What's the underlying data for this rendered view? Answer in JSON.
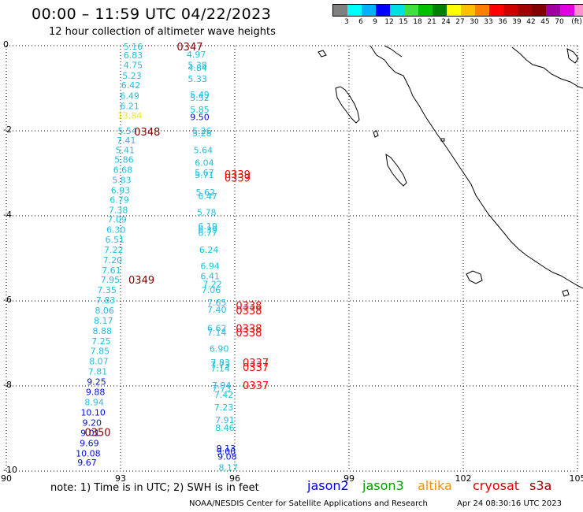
{
  "title": "00:00 – 11:59 UTC 04/22/2023",
  "subtitle": "12 hour collection of altimeter wave heights",
  "legend": {
    "colors": [
      "#808080",
      "#00ffff",
      "#00b0ff",
      "#0000ff",
      "#00e0e0",
      "#40e040",
      "#00c000",
      "#008000",
      "#ffff00",
      "#ffc000",
      "#ff8000",
      "#ff0000",
      "#d00000",
      "#a00000",
      "#800000",
      "#a000a0",
      "#e000e0",
      "#ff90d0",
      "#000000"
    ],
    "labels": [
      "3",
      "6",
      "9",
      "12",
      "15",
      "18",
      "21",
      "24",
      "27",
      "30",
      "33",
      "36",
      "39",
      "42",
      "45",
      "70",
      "(ft)"
    ]
  },
  "map": {
    "lon_ticks": [
      "90",
      "93",
      "96",
      "99",
      "102",
      "105"
    ],
    "lat_ticks": [
      "0",
      "-2",
      "-4",
      "-6",
      "-8",
      "-10"
    ],
    "lon_range": [
      90,
      105
    ],
    "lat_range": [
      0,
      -10
    ]
  },
  "track1": [
    {
      "lat": -0.02,
      "lon": 93.33,
      "v": "5.16",
      "c": "#20c0e0"
    },
    {
      "lat": -0.22,
      "lon": 93.33,
      "v": "6.83",
      "c": "#20c0e0"
    },
    {
      "lat": -0.45,
      "lon": 93.33,
      "v": "4.75",
      "c": "#20c0e0"
    },
    {
      "lat": -0.7,
      "lon": 93.3,
      "v": "5.23",
      "c": "#20c0e0"
    },
    {
      "lat": -0.93,
      "lon": 93.27,
      "v": "6.42",
      "c": "#20c0e0"
    },
    {
      "lat": -1.18,
      "lon": 93.24,
      "v": "6.49",
      "c": "#20c0e0"
    },
    {
      "lat": -1.42,
      "lon": 93.24,
      "v": "6.21",
      "c": "#20c0e0"
    },
    {
      "lat": -1.64,
      "lon": 93.24,
      "v": "13.84",
      "c": "#e8e820"
    },
    {
      "lat": -2.0,
      "lon": 93.18,
      "v": "5.54",
      "c": "#20c0e0"
    },
    {
      "lat": -2.22,
      "lon": 93.15,
      "v": "7.41",
      "c": "#20c0e0"
    },
    {
      "lat": -2.45,
      "lon": 93.12,
      "v": "5.41",
      "c": "#20c0e0"
    },
    {
      "lat": -2.68,
      "lon": 93.09,
      "v": "5.86",
      "c": "#20c0e0"
    },
    {
      "lat": -2.92,
      "lon": 93.06,
      "v": "6.68",
      "c": "#20c0e0"
    },
    {
      "lat": -3.16,
      "lon": 93.03,
      "v": "5.83",
      "c": "#20c0e0"
    },
    {
      "lat": -3.4,
      "lon": 93.0,
      "v": "6.93",
      "c": "#20c0e0"
    },
    {
      "lat": -3.62,
      "lon": 92.97,
      "v": "6.79",
      "c": "#20c0e0"
    },
    {
      "lat": -3.86,
      "lon": 92.94,
      "v": "7.38",
      "c": "#20c0e0"
    },
    {
      "lat": -4.08,
      "lon": 92.91,
      "v": "7.09",
      "c": "#20c0e0"
    },
    {
      "lat": -4.32,
      "lon": 92.88,
      "v": "6.30",
      "c": "#20c0e0"
    },
    {
      "lat": -4.56,
      "lon": 92.85,
      "v": "6.51",
      "c": "#20c0e0"
    },
    {
      "lat": -4.8,
      "lon": 92.82,
      "v": "7.22",
      "c": "#20c0e0"
    },
    {
      "lat": -5.04,
      "lon": 92.79,
      "v": "7.20",
      "c": "#20c0e0"
    },
    {
      "lat": -5.28,
      "lon": 92.76,
      "v": "7.61",
      "c": "#20c0e0"
    },
    {
      "lat": -5.5,
      "lon": 92.73,
      "v": "7.95",
      "c": "#20c0e0"
    },
    {
      "lat": -5.74,
      "lon": 92.64,
      "v": "7.35",
      "c": "#20c0e0"
    },
    {
      "lat": -5.98,
      "lon": 92.61,
      "v": "7.83",
      "c": "#20c0e0"
    },
    {
      "lat": -6.22,
      "lon": 92.58,
      "v": "8.06",
      "c": "#20c0e0"
    },
    {
      "lat": -6.46,
      "lon": 92.55,
      "v": "8.17",
      "c": "#20c0e0"
    },
    {
      "lat": -6.7,
      "lon": 92.52,
      "v": "8.88",
      "c": "#20c0e0"
    },
    {
      "lat": -6.94,
      "lon": 92.49,
      "v": "7.25",
      "c": "#20c0e0"
    },
    {
      "lat": -7.18,
      "lon": 92.46,
      "v": "7.85",
      "c": "#20c0e0"
    },
    {
      "lat": -7.42,
      "lon": 92.43,
      "v": "8.07",
      "c": "#20c0e0"
    },
    {
      "lat": -7.66,
      "lon": 92.4,
      "v": "7.81",
      "c": "#20c0e0"
    },
    {
      "lat": -7.9,
      "lon": 92.37,
      "v": "9.25",
      "c": "#0010e0"
    },
    {
      "lat": -8.14,
      "lon": 92.34,
      "v": "9.88",
      "c": "#0010e0"
    },
    {
      "lat": -8.38,
      "lon": 92.31,
      "v": "8.94",
      "c": "#20c0e0"
    },
    {
      "lat": -8.62,
      "lon": 92.28,
      "v": "10.10",
      "c": "#0010e0"
    },
    {
      "lat": -8.86,
      "lon": 92.25,
      "v": "9.20",
      "c": "#0010e0"
    },
    {
      "lat": -9.1,
      "lon": 92.2,
      "v": "9.01",
      "c": "#0010e0"
    },
    {
      "lat": -9.34,
      "lon": 92.18,
      "v": "9.69",
      "c": "#0010e0"
    },
    {
      "lat": -9.58,
      "lon": 92.15,
      "v": "10.08",
      "c": "#0010e0"
    },
    {
      "lat": -9.8,
      "lon": 92.12,
      "v": "9.67",
      "c": "#0010e0"
    }
  ],
  "track2": [
    {
      "lat": -0.2,
      "lon": 94.99,
      "v": "4.97",
      "c": "#20c0e0"
    },
    {
      "lat": -0.45,
      "lon": 95.02,
      "v": "5.38",
      "c": "#20c0e0"
    },
    {
      "lat": -0.52,
      "lon": 95.02,
      "v": "4.84",
      "c": "#20c0e0"
    },
    {
      "lat": -0.78,
      "lon": 95.02,
      "v": "5.33",
      "c": "#20c0e0"
    },
    {
      "lat": -1.15,
      "lon": 95.08,
      "v": "5.49",
      "c": "#20c0e0"
    },
    {
      "lat": -1.22,
      "lon": 95.08,
      "v": "5.52",
      "c": "#20c0e0"
    },
    {
      "lat": -1.5,
      "lon": 95.08,
      "v": "5.85",
      "c": "#20c0e0"
    },
    {
      "lat": -1.68,
      "lon": 95.08,
      "v": "9.50",
      "c": "#0010e0"
    },
    {
      "lat": -2.0,
      "lon": 95.14,
      "v": "5.26",
      "c": "#20c0e0"
    },
    {
      "lat": -2.06,
      "lon": 95.14,
      "v": "5.28",
      "c": "#20c0e0"
    },
    {
      "lat": -2.45,
      "lon": 95.17,
      "v": "5.64",
      "c": "#20c0e0"
    },
    {
      "lat": -2.75,
      "lon": 95.2,
      "v": "6.04",
      "c": "#20c0e0"
    },
    {
      "lat": -2.98,
      "lon": 95.2,
      "v": "5.67",
      "c": "#20c0e0"
    },
    {
      "lat": -3.04,
      "lon": 95.2,
      "v": "5.71",
      "c": "#20c0e0"
    },
    {
      "lat": -3.44,
      "lon": 95.23,
      "v": "5.62",
      "c": "#20c0e0"
    },
    {
      "lat": -3.54,
      "lon": 95.29,
      "v": "6.47",
      "c": "#20c0e0"
    },
    {
      "lat": -3.92,
      "lon": 95.26,
      "v": "5.78",
      "c": "#20c0e0"
    },
    {
      "lat": -4.24,
      "lon": 95.29,
      "v": "6.19",
      "c": "#20c0e0"
    },
    {
      "lat": -4.32,
      "lon": 95.29,
      "v": "6.39",
      "c": "#20c0e0"
    },
    {
      "lat": -4.4,
      "lon": 95.29,
      "v": "6.77",
      "c": "#20c0e0"
    },
    {
      "lat": -4.8,
      "lon": 95.32,
      "v": "6.24",
      "c": "#20c0e0"
    },
    {
      "lat": -5.18,
      "lon": 95.35,
      "v": "6.94",
      "c": "#20c0e0"
    },
    {
      "lat": -5.42,
      "lon": 95.35,
      "v": "6.41",
      "c": "#20c0e0"
    },
    {
      "lat": -5.6,
      "lon": 95.41,
      "v": "7.22",
      "c": "#20c0e0"
    },
    {
      "lat": -5.74,
      "lon": 95.38,
      "v": "7.06",
      "c": "#20c0e0"
    },
    {
      "lat": -6.04,
      "lon": 95.53,
      "v": "7.65",
      "c": "#20c0e0"
    },
    {
      "lat": -6.2,
      "lon": 95.53,
      "v": "7.40",
      "c": "#20c0e0"
    },
    {
      "lat": -6.64,
      "lon": 95.53,
      "v": "6.62",
      "c": "#20c0e0"
    },
    {
      "lat": -6.74,
      "lon": 95.53,
      "v": "7.14",
      "c": "#20c0e0"
    },
    {
      "lat": -7.12,
      "lon": 95.59,
      "v": "6.90",
      "c": "#20c0e0"
    },
    {
      "lat": -7.44,
      "lon": 95.62,
      "v": "7.83",
      "c": "#20c0e0"
    },
    {
      "lat": -7.5,
      "lon": 95.62,
      "v": "7.73",
      "c": "#20c0e0"
    },
    {
      "lat": -7.58,
      "lon": 95.62,
      "v": "7.14",
      "c": "#20c0e0"
    },
    {
      "lat": -7.98,
      "lon": 95.65,
      "v": "7.94",
      "c": "#20c0e0"
    },
    {
      "lat": -8.06,
      "lon": 95.65,
      "v": "7.73",
      "c": "#20c0e0"
    },
    {
      "lat": -8.2,
      "lon": 95.71,
      "v": "7.42",
      "c": "#20c0e0"
    },
    {
      "lat": -8.5,
      "lon": 95.71,
      "v": "7.23",
      "c": "#20c0e0"
    },
    {
      "lat": -8.8,
      "lon": 95.74,
      "v": "7.91",
      "c": "#20c0e0"
    },
    {
      "lat": -8.98,
      "lon": 95.74,
      "v": "8.46",
      "c": "#20c0e0"
    },
    {
      "lat": -9.46,
      "lon": 95.77,
      "v": "9.13",
      "c": "#0010e0"
    },
    {
      "lat": -9.54,
      "lon": 95.77,
      "v": "9.00",
      "c": "#0010e0"
    },
    {
      "lat": -9.66,
      "lon": 95.8,
      "v": "9.08",
      "c": "#0010e0"
    },
    {
      "lat": -9.92,
      "lon": 95.83,
      "v": "8.17",
      "c": "#20c0e0"
    }
  ],
  "orbit_labels": [
    {
      "lat": -0.02,
      "lon": 94.82,
      "t": "0347",
      "c": "#800000"
    },
    {
      "lat": -2.02,
      "lon": 93.7,
      "t": "0348",
      "c": "#800000"
    },
    {
      "lat": -5.5,
      "lon": 93.55,
      "t": "0349",
      "c": "#800000"
    },
    {
      "lat": -9.08,
      "lon": 92.4,
      "t": "0350",
      "c": "#800000"
    },
    {
      "lat": -3.02,
      "lon": 96.07,
      "t": "0339",
      "c": "#ff0000"
    },
    {
      "lat": -3.1,
      "lon": 96.07,
      "t": "0339",
      "c": "#ff0000"
    },
    {
      "lat": -6.1,
      "lon": 96.37,
      "t": "0338",
      "c": "#ff0000"
    },
    {
      "lat": -6.22,
      "lon": 96.37,
      "t": "0338",
      "c": "#ff0000"
    },
    {
      "lat": -6.64,
      "lon": 96.37,
      "t": "0338",
      "c": "#ff0000"
    },
    {
      "lat": -6.74,
      "lon": 96.37,
      "t": "0338",
      "c": "#ff0000"
    },
    {
      "lat": -7.44,
      "lon": 96.55,
      "t": "0337",
      "c": "#ff0000"
    },
    {
      "lat": -7.56,
      "lon": 96.55,
      "t": "0337",
      "c": "#ff0000"
    },
    {
      "lat": -7.98,
      "lon": 96.55,
      "t": "0337",
      "c": "#ff0000"
    }
  ],
  "note": "note:  1) Time is in UTC;  2) SWH is in feet",
  "satellites": [
    {
      "name": "jason2",
      "color": "#0000e0",
      "left": 390
    },
    {
      "name": "jason3",
      "color": "#00a000",
      "left": 460
    },
    {
      "name": "altika",
      "color": "#ff9000",
      "left": 530
    },
    {
      "name": "cryosat",
      "color": "#e00000",
      "left": 600
    },
    {
      "name": "s3a",
      "color": "#a00000",
      "left": 672
    }
  ],
  "credit": "NOAA/NESDIS Center for Satellite Applications and Research",
  "created": "Apr 24 08:30:16 UTC 2023"
}
